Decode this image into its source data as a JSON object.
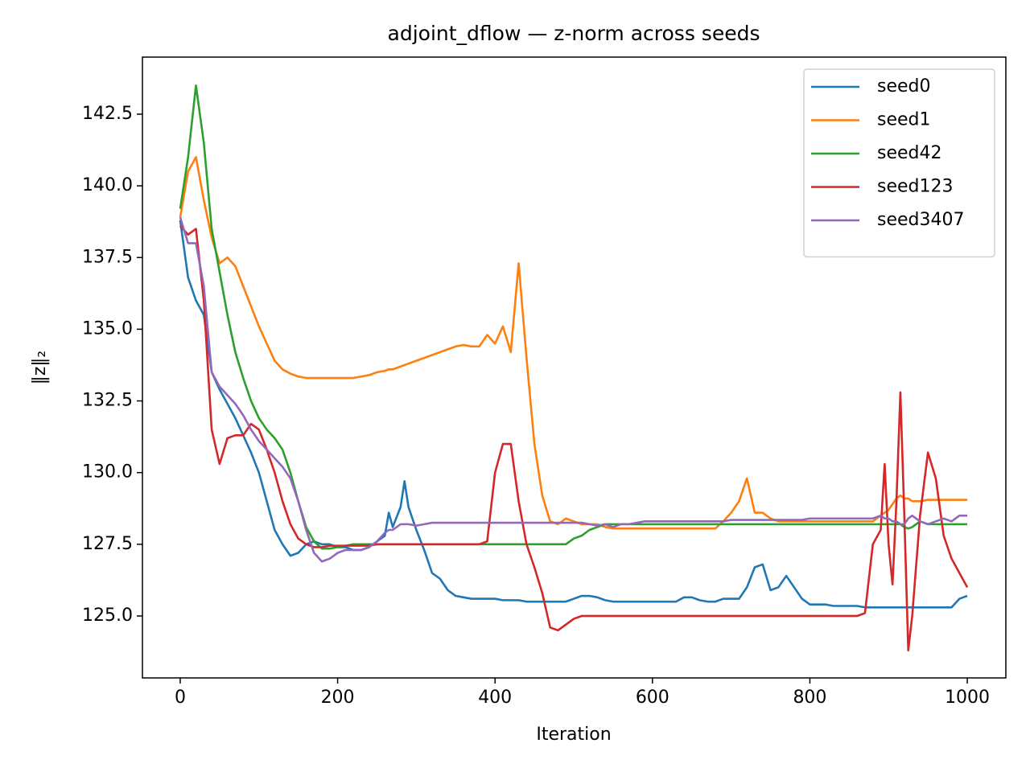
{
  "chart_data": {
    "type": "line",
    "title": "adjoint_dflow — z-norm across seeds",
    "x_label": "Iteration",
    "y_label": "‖z‖₂",
    "x": [
      0,
      10,
      20,
      30,
      40,
      50,
      60,
      70,
      80,
      90,
      100,
      110,
      120,
      130,
      140,
      150,
      160,
      170,
      180,
      190,
      200,
      210,
      220,
      230,
      240,
      250,
      260,
      265,
      270,
      280,
      285,
      290,
      300,
      310,
      320,
      330,
      340,
      350,
      360,
      370,
      380,
      390,
      400,
      410,
      420,
      430,
      440,
      450,
      460,
      470,
      480,
      490,
      500,
      510,
      520,
      530,
      540,
      550,
      560,
      570,
      580,
      590,
      600,
      610,
      620,
      630,
      640,
      650,
      660,
      670,
      680,
      690,
      700,
      710,
      720,
      730,
      740,
      750,
      760,
      770,
      780,
      790,
      800,
      810,
      820,
      830,
      840,
      850,
      860,
      870,
      880,
      890,
      895,
      900,
      905,
      910,
      915,
      920,
      925,
      930,
      940,
      950,
      960,
      970,
      980,
      990,
      1000
    ],
    "series": [
      {
        "name": "seed0",
        "color": "#1f77b4",
        "values": [
          138.8,
          136.8,
          136,
          135.5,
          133.5,
          132.9,
          132.4,
          131.9,
          131.3,
          130.7,
          130,
          129,
          128,
          127.5,
          127.1,
          127.2,
          127.5,
          127.6,
          127.5,
          127.5,
          127.4,
          127.4,
          127.3,
          127.3,
          127.4,
          127.6,
          127.8,
          128.6,
          128.1,
          128.8,
          129.7,
          128.8,
          128,
          127.3,
          126.5,
          126.3,
          125.9,
          125.7,
          125.65,
          125.6,
          125.6,
          125.6,
          125.6,
          125.55,
          125.55,
          125.55,
          125.5,
          125.5,
          125.5,
          125.5,
          125.5,
          125.5,
          125.6,
          125.7,
          125.7,
          125.65,
          125.55,
          125.5,
          125.5,
          125.5,
          125.5,
          125.5,
          125.5,
          125.5,
          125.5,
          125.5,
          125.65,
          125.65,
          125.55,
          125.5,
          125.5,
          125.6,
          125.6,
          125.6,
          126,
          126.7,
          126.8,
          125.9,
          126,
          126.4,
          126,
          125.6,
          125.4,
          125.4,
          125.4,
          125.35,
          125.35,
          125.35,
          125.35,
          125.3,
          125.3,
          125.3,
          125.3,
          125.3,
          125.3,
          125.3,
          125.3,
          125.3,
          125.3,
          125.3,
          125.3,
          125.3,
          125.3,
          125.3,
          125.3,
          125.6,
          125.7
        ]
      },
      {
        "name": "seed1",
        "color": "#ff7f0e",
        "values": [
          138.9,
          140.5,
          141,
          139.5,
          138.2,
          137.3,
          137.5,
          137.2,
          136.5,
          135.8,
          135.1,
          134.5,
          133.9,
          133.6,
          133.45,
          133.35,
          133.3,
          133.3,
          133.3,
          133.3,
          133.3,
          133.3,
          133.3,
          133.35,
          133.4,
          133.5,
          133.55,
          133.6,
          133.6,
          133.7,
          133.75,
          133.8,
          133.9,
          134,
          134.1,
          134.2,
          134.3,
          134.4,
          134.45,
          134.4,
          134.4,
          134.8,
          134.5,
          135.1,
          134.2,
          137.3,
          134,
          131,
          129.2,
          128.3,
          128.2,
          128.4,
          128.3,
          128.2,
          128.2,
          128.2,
          128.1,
          128.05,
          128.05,
          128.05,
          128.05,
          128.05,
          128.05,
          128.05,
          128.05,
          128.05,
          128.05,
          128.05,
          128.05,
          128.05,
          128.05,
          128.3,
          128.6,
          129,
          129.8,
          128.6,
          128.6,
          128.4,
          128.3,
          128.3,
          128.3,
          128.3,
          128.3,
          128.3,
          128.3,
          128.3,
          128.3,
          128.3,
          128.3,
          128.3,
          128.3,
          128.5,
          128.6,
          128.7,
          128.9,
          129.1,
          129.2,
          129.1,
          129.1,
          129,
          129,
          129.05,
          129.05,
          129.05,
          129.05,
          129.05,
          129.05
        ]
      },
      {
        "name": "seed42",
        "color": "#2ca02c",
        "values": [
          139.2,
          141,
          143.5,
          141.5,
          138.5,
          137,
          135.5,
          134.2,
          133.3,
          132.5,
          131.9,
          131.5,
          131.2,
          130.8,
          130,
          129,
          128.1,
          127.6,
          127.35,
          127.35,
          127.4,
          127.45,
          127.5,
          127.5,
          127.5,
          127.5,
          127.5,
          127.5,
          127.5,
          127.5,
          127.5,
          127.5,
          127.5,
          127.5,
          127.5,
          127.5,
          127.5,
          127.5,
          127.5,
          127.5,
          127.5,
          127.5,
          127.5,
          127.5,
          127.5,
          127.5,
          127.5,
          127.5,
          127.5,
          127.5,
          127.5,
          127.5,
          127.7,
          127.8,
          128,
          128.1,
          128.2,
          128.2,
          128.2,
          128.2,
          128.2,
          128.2,
          128.2,
          128.2,
          128.2,
          128.2,
          128.2,
          128.2,
          128.2,
          128.2,
          128.2,
          128.2,
          128.2,
          128.2,
          128.2,
          128.2,
          128.2,
          128.2,
          128.2,
          128.2,
          128.2,
          128.2,
          128.2,
          128.2,
          128.2,
          128.2,
          128.2,
          128.2,
          128.2,
          128.2,
          128.2,
          128.2,
          128.2,
          128.2,
          128.2,
          128.2,
          128.2,
          128.1,
          128.05,
          128.1,
          128.3,
          128.2,
          128.2,
          128.2,
          128.2,
          128.2,
          128.2
        ]
      },
      {
        "name": "seed123",
        "color": "#d62728",
        "values": [
          138.6,
          138.3,
          138.5,
          136,
          131.5,
          130.3,
          131.2,
          131.3,
          131.3,
          131.7,
          131.5,
          130.8,
          130,
          129,
          128.2,
          127.7,
          127.5,
          127.4,
          127.4,
          127.45,
          127.45,
          127.45,
          127.45,
          127.45,
          127.45,
          127.5,
          127.5,
          127.5,
          127.5,
          127.5,
          127.5,
          127.5,
          127.5,
          127.5,
          127.5,
          127.5,
          127.5,
          127.5,
          127.5,
          127.5,
          127.5,
          127.6,
          130,
          131,
          131,
          129,
          127.5,
          126.7,
          125.8,
          124.6,
          124.5,
          124.7,
          124.9,
          125,
          125,
          125,
          125,
          125,
          125,
          125,
          125,
          125,
          125,
          125,
          125,
          125,
          125,
          125,
          125,
          125,
          125,
          125,
          125,
          125,
          125,
          125,
          125,
          125,
          125,
          125,
          125,
          125,
          125,
          125,
          125,
          125,
          125,
          125,
          125,
          125.1,
          127.5,
          128,
          130.3,
          127.5,
          126.1,
          129,
          132.8,
          128.5,
          123.8,
          125,
          128.5,
          130.7,
          129.8,
          127.8,
          127,
          126.5,
          126
        ]
      },
      {
        "name": "seed3407",
        "color": "#9467bd",
        "values": [
          138.9,
          138,
          138,
          136.5,
          133.5,
          133,
          132.7,
          132.4,
          132,
          131.5,
          131.1,
          130.8,
          130.5,
          130.2,
          129.8,
          129,
          128,
          127.2,
          126.9,
          127,
          127.2,
          127.3,
          127.3,
          127.3,
          127.4,
          127.6,
          127.9,
          128,
          128,
          128.2,
          128.2,
          128.2,
          128.15,
          128.2,
          128.25,
          128.25,
          128.25,
          128.25,
          128.25,
          128.25,
          128.25,
          128.25,
          128.25,
          128.25,
          128.25,
          128.25,
          128.25,
          128.25,
          128.25,
          128.25,
          128.25,
          128.25,
          128.25,
          128.25,
          128.2,
          128.15,
          128.2,
          128.1,
          128.2,
          128.2,
          128.25,
          128.3,
          128.3,
          128.3,
          128.3,
          128.3,
          128.3,
          128.3,
          128.3,
          128.3,
          128.3,
          128.3,
          128.35,
          128.35,
          128.35,
          128.35,
          128.35,
          128.35,
          128.35,
          128.35,
          128.35,
          128.35,
          128.4,
          128.4,
          128.4,
          128.4,
          128.4,
          128.4,
          128.4,
          128.4,
          128.4,
          128.5,
          128.4,
          128.4,
          128.3,
          128.3,
          128.2,
          128.2,
          128.4,
          128.5,
          128.3,
          128.2,
          128.3,
          128.4,
          128.3,
          128.5,
          128.5
        ]
      }
    ],
    "xlim": [
      -48,
      1049
    ],
    "ylim": [
      122.84,
      144.49
    ],
    "xticks": [
      0,
      200,
      400,
      600,
      800,
      1000
    ],
    "yticks": [
      {
        "value": 125,
        "label": "125.0"
      },
      127.5,
      {
        "value": 130,
        "label": "130.0"
      },
      132.5,
      {
        "value": 135,
        "label": "135.0"
      },
      137.5,
      {
        "value": 140,
        "label": "140.0"
      },
      142.5
    ],
    "legend": "upper right",
    "grid": false
  }
}
